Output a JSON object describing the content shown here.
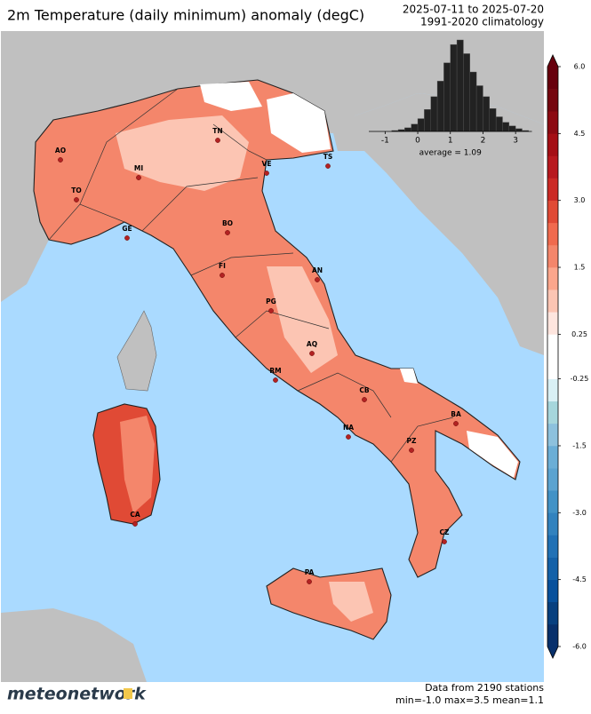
{
  "title": "2m Temperature (daily minimum) anomaly (degC)",
  "period": "2025-07-11 to 2025-07-20",
  "climatology": "1991-2020 climatology",
  "cities": [
    "AO",
    "TO",
    "MI",
    "GE",
    "TN",
    "VE",
    "TS",
    "BO",
    "FI",
    "AN",
    "PG",
    "AQ",
    "RM",
    "CB",
    "BA",
    "NA",
    "PZ",
    "CZ",
    "PA",
    "CA"
  ],
  "colorbar": {
    "levels": [
      -6,
      -5.5,
      -5,
      -4.5,
      -4,
      -3.5,
      -3,
      -2.5,
      -2,
      -1.5,
      -1,
      -0.5,
      -0.25,
      0,
      0.25,
      0.5,
      1,
      1.5,
      2,
      2.5,
      3,
      3.5,
      4,
      4.5,
      5,
      5.5,
      6
    ],
    "colors": [
      "#08306b",
      "#08407f",
      "#08519c",
      "#1461a8",
      "#2171b5",
      "#3282be",
      "#4292c6",
      "#5ba3d0",
      "#6baed6",
      "#8dc1dd",
      "#a6d6dc",
      "#d9f0f5",
      "#ffffff",
      "#ffffff",
      "#fee5de",
      "#fcc5b3",
      "#fba68c",
      "#f4866b",
      "#f06a4e",
      "#e04a35",
      "#cb2a25",
      "#b8191e",
      "#a50f15",
      "#8c0a12",
      "#75060f",
      "#67000d"
    ],
    "ticks": [
      {
        "value": 6,
        "label": "6.0"
      },
      4.5,
      {
        "value": 3,
        "label": "3.0"
      },
      1.5,
      0.25,
      -0.25,
      -1.5,
      {
        "value": -3,
        "label": "-3.0"
      },
      -4.5,
      {
        "value": -6,
        "label": "-6.0"
      }
    ]
  },
  "histogram": {
    "bins": [
      -0.8,
      -0.6,
      -0.4,
      -0.2,
      0,
      0.2,
      0.4,
      0.6,
      0.8,
      1.0,
      1.2,
      1.4,
      1.6,
      1.8,
      2.0,
      2.2,
      2.4,
      2.6,
      2.8,
      3.0,
      3.2,
      3.4
    ],
    "counts": [
      1,
      2,
      4,
      8,
      14,
      24,
      38,
      55,
      75,
      95,
      100,
      85,
      65,
      50,
      38,
      25,
      16,
      10,
      6,
      3,
      1
    ],
    "color": "#222222",
    "xlim": [
      -1.5,
      3.5
    ],
    "ylim": [
      0,
      100
    ],
    "xticks": [
      -1,
      0,
      1,
      2,
      3
    ],
    "annotation": "average = 1.09"
  },
  "footer": {
    "stations": "Data from 2190 stations",
    "stats": "min=-1.0 max=3.5 mean=1.1"
  },
  "logo": "meteonetwork"
}
